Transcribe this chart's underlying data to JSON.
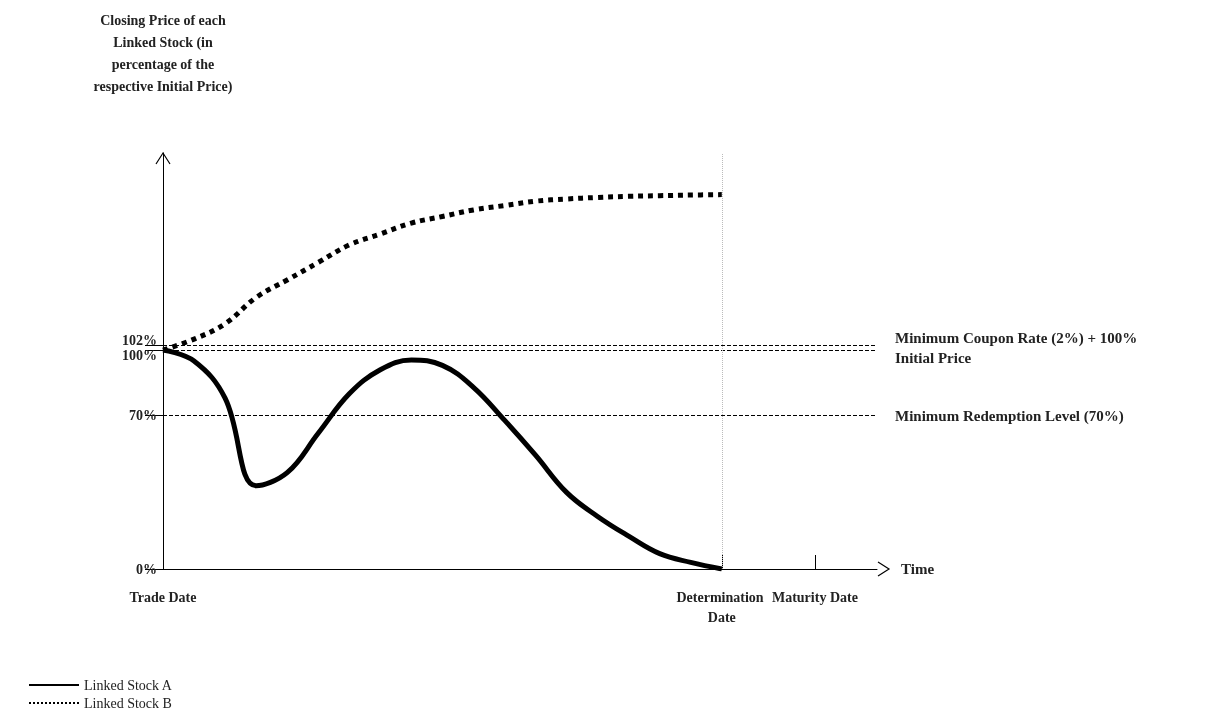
{
  "chart_data": {
    "type": "line",
    "ylabel": "Closing Price of each Linked Stock (in percentage of the respective Initial Price)",
    "xlabel": "Time",
    "categories": [
      "Trade Date",
      null,
      null,
      null,
      null,
      null,
      null,
      null,
      null,
      null,
      null,
      null,
      null,
      null,
      null,
      null,
      null,
      null,
      "Determination Date",
      null,
      null,
      "Maturity Date",
      null,
      null
    ],
    "ylim": [
      0,
      190
    ],
    "yticks": [
      {
        "value": 0,
        "label": "0%"
      },
      {
        "value": 70,
        "label": "70%"
      },
      {
        "value": 100,
        "label": "100%"
      },
      {
        "value": 102,
        "label": "102%"
      }
    ],
    "series": [
      {
        "name": "Linked Stock A",
        "color": "#000000",
        "line_style": "solid",
        "values": [
          100,
          95,
          78,
          38,
          44,
          62,
          80,
          91,
          95.5,
          93,
          83,
          68,
          52,
          35,
          24,
          15,
          7,
          3,
          0,
          null,
          null,
          null,
          null,
          null
        ]
      },
      {
        "name": "Linked Stock B",
        "color": "#000000",
        "line_style": "dotted",
        "values": [
          100,
          105,
          112,
          124,
          132,
          140,
          148,
          153,
          158,
          161,
          164,
          166,
          168,
          169,
          169.7,
          170.2,
          170.5,
          170.8,
          171,
          null,
          null,
          null,
          null,
          null
        ]
      }
    ],
    "ref_lines": [
      {
        "axis": "y",
        "value": 102,
        "label": "Minimum Coupon Rate (2%) + 100%",
        "color": "#000000",
        "line_style": "dashed"
      },
      {
        "axis": "y",
        "value": 100,
        "label": "Initial Price",
        "color": "#000000",
        "line_style": "dashed"
      },
      {
        "axis": "y",
        "value": 70,
        "label": "Minimum Redemption Level (70%)",
        "color": "#000000",
        "line_style": "dashed"
      },
      {
        "axis": "x",
        "value": "Determination Date",
        "color": "#bbbbbb",
        "line_style": "dotted"
      }
    ],
    "legend": "bottom left",
    "marker": "none"
  }
}
